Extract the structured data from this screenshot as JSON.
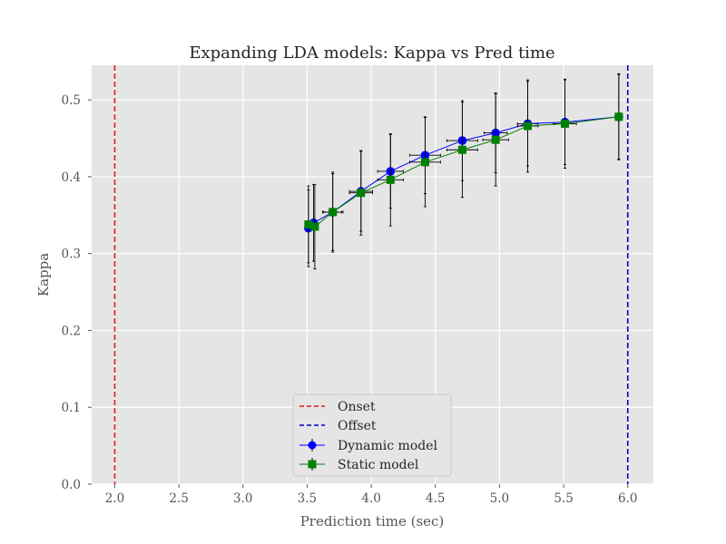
{
  "chart_data": {
    "type": "line",
    "title": "Expanding LDA models: Kappa vs Pred time",
    "xlabel": "Prediction time (sec)",
    "ylabel": "Kappa",
    "xlim": [
      1.82,
      6.2
    ],
    "ylim": [
      0.0,
      0.545
    ],
    "xticks": [
      "2.0",
      "2.5",
      "3.0",
      "3.5",
      "4.0",
      "4.5",
      "5.0",
      "5.5",
      "6.0"
    ],
    "yticks": [
      "0.0",
      "0.1",
      "0.2",
      "0.3",
      "0.4",
      "0.5"
    ],
    "grid": true,
    "legend_position": "lower-center",
    "vlines": [
      {
        "name": "Onset",
        "x": 2.0,
        "color": "#e41a1c",
        "style": "dashed"
      },
      {
        "name": "Offset",
        "x": 6.0,
        "color": "#0000cc",
        "style": "dashed"
      }
    ],
    "series": [
      {
        "name": "Dynamic model",
        "marker": "circle",
        "color": "#0000ff",
        "x": [
          3.51,
          3.55,
          3.7,
          3.92,
          4.15,
          4.42,
          4.71,
          4.97,
          5.22,
          5.51,
          5.93
        ],
        "y": [
          0.333,
          0.34,
          0.354,
          0.381,
          0.407,
          0.428,
          0.447,
          0.457,
          0.469,
          0.471,
          0.478
        ],
        "xerr": [
          0.0,
          0.0,
          0.07,
          0.09,
          0.1,
          0.12,
          0.12,
          0.09,
          0.08,
          0.0,
          0.0
        ],
        "yerr": [
          0.05,
          0.05,
          0.052,
          0.052,
          0.048,
          0.05,
          0.052,
          0.052,
          0.055,
          0.055,
          0.056
        ]
      },
      {
        "name": "Static model",
        "marker": "square",
        "color": "#008000",
        "x": [
          3.51,
          3.56,
          3.7,
          3.92,
          4.15,
          4.42,
          4.71,
          4.97,
          5.22,
          5.51,
          5.93
        ],
        "y": [
          0.338,
          0.335,
          0.354,
          0.379,
          0.396,
          0.419,
          0.435,
          0.448,
          0.466,
          0.469,
          0.478
        ],
        "xerr": [
          0.0,
          0.0,
          0.08,
          0.09,
          0.1,
          0.12,
          0.12,
          0.1,
          0.08,
          0.09,
          0.0
        ],
        "yerr": [
          0.05,
          0.055,
          0.05,
          0.055,
          0.06,
          0.058,
          0.062,
          0.06,
          0.06,
          0.058,
          0.055
        ]
      }
    ]
  }
}
